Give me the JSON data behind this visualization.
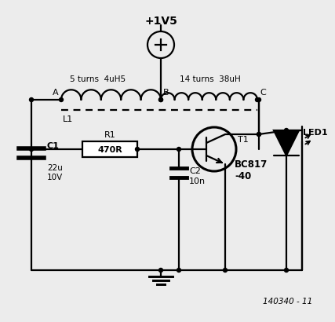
{
  "bg_color": "#ececec",
  "line_color": "#000000",
  "component_labels": {
    "voltage": "+1V5",
    "C1_val": "22u\n10V",
    "C1_name": "C1",
    "R1_name": "R1",
    "R1_val": "470R",
    "C2_name": "C2",
    "C2_val": "10n",
    "T1_name": "T1",
    "T1_val": "BC817\n-40",
    "LED1_name": "LED1",
    "L1_name": "L1",
    "L1_left": "5 turns  4uH5",
    "L1_right": "14 turns  38uH",
    "node_A": "A",
    "node_B": "B",
    "node_C": "C",
    "ref": "140340 - 11"
  }
}
